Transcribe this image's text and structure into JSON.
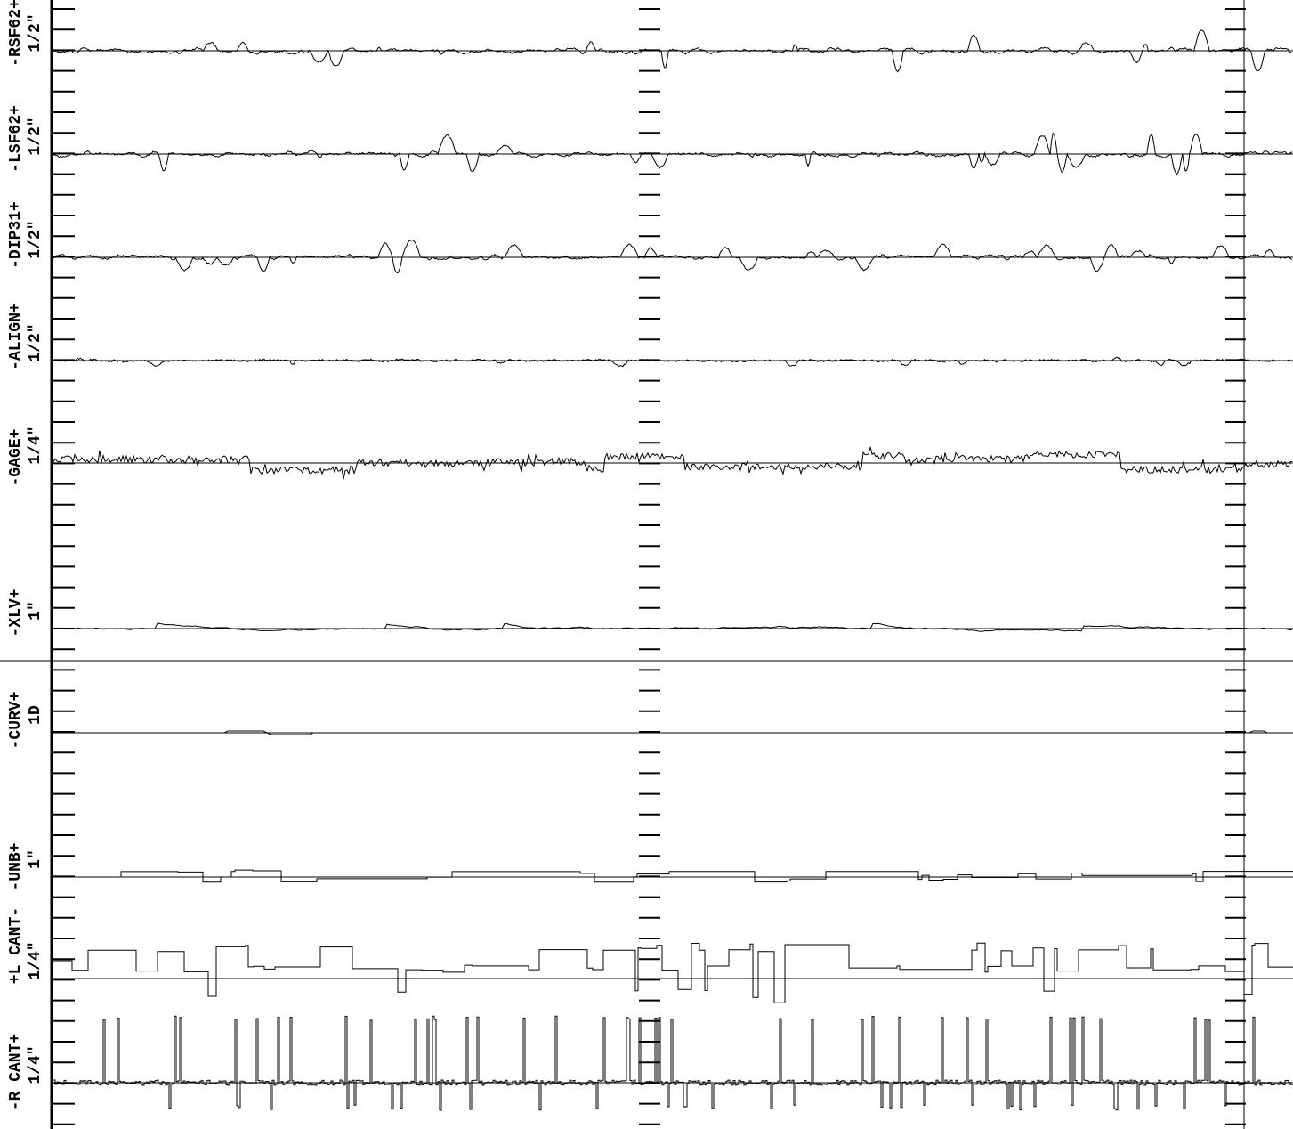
{
  "chart_data": {
    "type": "line",
    "title": "",
    "xlabel": "",
    "ylabel": "",
    "grid": true,
    "legend": "none",
    "channels": [
      {
        "name": "RSF62",
        "label": "-RSF62+",
        "scale": "1/2\"",
        "style": "wavy",
        "amp": 0.55
      },
      {
        "name": "LSF62",
        "label": "-LSF62+",
        "scale": "1/2\"",
        "style": "wavy",
        "amp": 0.55
      },
      {
        "name": "DIP31",
        "label": "-DIP31+",
        "scale": "1/2\"",
        "style": "wavy",
        "amp": 0.45
      },
      {
        "name": "ALIGN",
        "label": "-ALIGN+",
        "scale": "1/2\"",
        "style": "wavy",
        "amp": 0.18
      },
      {
        "name": "GAGE",
        "label": "-GAGE+",
        "scale": "1/4\"",
        "style": "offset",
        "amp": 0.6
      },
      {
        "name": "XLV",
        "label": "-XLV+",
        "scale": "1\"",
        "style": "smooth",
        "amp": 0.15
      },
      {
        "name": "CURV",
        "label": "-CURV+",
        "scale": "1D",
        "style": "flat",
        "amp": 0.05
      },
      {
        "name": "UNB",
        "label": "-UNB+",
        "scale": "1\"",
        "style": "steps",
        "amp": 0.2
      },
      {
        "name": "L_CANT",
        "label": "+L CANT-",
        "scale": "1/4\"",
        "style": "square",
        "amp": 0.8
      },
      {
        "name": "R_CANT",
        "label": "-R CANT+",
        "scale": "1/4\"",
        "style": "spikes",
        "amp": 1.0
      }
    ],
    "colors": {
      "line": "#000000",
      "background": "#ffffff"
    }
  }
}
